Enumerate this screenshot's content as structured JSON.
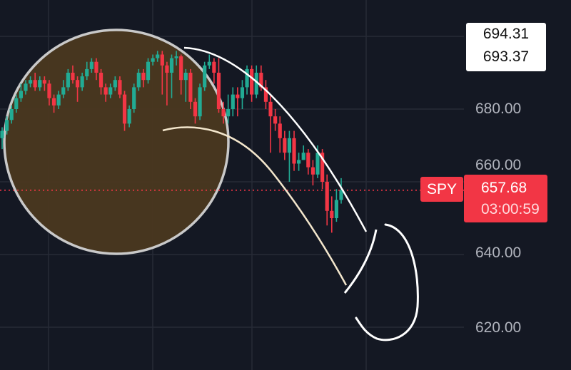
{
  "chart_data": {
    "type": "candlestick",
    "symbol": "SPY",
    "ylim": [
      615,
      705
    ],
    "y_ticks": [
      "680.00",
      "660.00",
      "640.00",
      "620.00"
    ],
    "grid": true,
    "colors": {
      "up": "#22ab94",
      "down": "#f23645",
      "background": "#141823",
      "highlight_circle_fill": "#4a3820",
      "annotation": "#ffffff"
    },
    "candles": [
      [
        672,
        675,
        669,
        674
      ],
      [
        674,
        678,
        673,
        677
      ],
      [
        677,
        681,
        676,
        680
      ],
      [
        680,
        684,
        679,
        683
      ],
      [
        683,
        687,
        682,
        685
      ],
      [
        685,
        688,
        684,
        687
      ],
      [
        687,
        689,
        686,
        688
      ],
      [
        688,
        690,
        685,
        686
      ],
      [
        686,
        689,
        685,
        688
      ],
      [
        688,
        689,
        685,
        687
      ],
      [
        687,
        688,
        681,
        683
      ],
      [
        683,
        684,
        679,
        681
      ],
      [
        681,
        685,
        680,
        684
      ],
      [
        684,
        688,
        683,
        686
      ],
      [
        686,
        691,
        685,
        690
      ],
      [
        690,
        692,
        687,
        688
      ],
      [
        688,
        689,
        682,
        686
      ],
      [
        686,
        690,
        685,
        689
      ],
      [
        689,
        693,
        688,
        691
      ],
      [
        691,
        694,
        690,
        693
      ],
      [
        693,
        694,
        688,
        690
      ],
      [
        690,
        691,
        684,
        686
      ],
      [
        686,
        687,
        682,
        684
      ],
      [
        684,
        687,
        683,
        686
      ],
      [
        686,
        689,
        685,
        688
      ],
      [
        688,
        689,
        683,
        684
      ],
      [
        684,
        685,
        674,
        676
      ],
      [
        676,
        681,
        675,
        680
      ],
      [
        680,
        687,
        679,
        686
      ],
      [
        686,
        691,
        685,
        690
      ],
      [
        690,
        691,
        686,
        688
      ],
      [
        688,
        694,
        687,
        693
      ],
      [
        693,
        695,
        692,
        694
      ],
      [
        694,
        696,
        693,
        695
      ],
      [
        695,
        696,
        684,
        692
      ],
      [
        692,
        693,
        681,
        690
      ],
      [
        690,
        695,
        683,
        694
      ],
      [
        694,
        696,
        692,
        694.5
      ],
      [
        694.5,
        695,
        684,
        688
      ],
      [
        688,
        691,
        682,
        690
      ],
      [
        690,
        691,
        680,
        682
      ],
      [
        682,
        683,
        676,
        678
      ],
      [
        678,
        687,
        677,
        686
      ],
      [
        686,
        693,
        685,
        692
      ],
      [
        692,
        695,
        691,
        693
      ],
      [
        693,
        694,
        687,
        690
      ],
      [
        690,
        694,
        679,
        680
      ],
      [
        680,
        682,
        676,
        678
      ],
      [
        678,
        684,
        676,
        680
      ],
      [
        680,
        686,
        678,
        684
      ],
      [
        684,
        686,
        678,
        683
      ],
      [
        683,
        688,
        680,
        686
      ],
      [
        686,
        692,
        684,
        691
      ],
      [
        691,
        692,
        682,
        684
      ],
      [
        684,
        692,
        683,
        690
      ],
      [
        690,
        692,
        685,
        686
      ],
      [
        686,
        688,
        680,
        682
      ],
      [
        682,
        684,
        668,
        678
      ],
      [
        678,
        680,
        674,
        676
      ],
      [
        676,
        678,
        668,
        672
      ],
      [
        672,
        674,
        666,
        668
      ],
      [
        668,
        674,
        660,
        672
      ],
      [
        672,
        674,
        663,
        665
      ],
      [
        665,
        668,
        663,
        666
      ],
      [
        666,
        670,
        666,
        668
      ],
      [
        668,
        669,
        662,
        664
      ],
      [
        664,
        666,
        659,
        662
      ],
      [
        662,
        670,
        661,
        668
      ],
      [
        668,
        669,
        658,
        660
      ],
      [
        660,
        662,
        648,
        652
      ],
      [
        652,
        656,
        646,
        650
      ],
      [
        650,
        658,
        649,
        655
      ],
      [
        655,
        661,
        654,
        657.68
      ]
    ],
    "crosshair_labels": {
      "high": "694.31",
      "low": "693.37"
    },
    "last_price": {
      "symbol_label": "SPY",
      "price": "657.68",
      "countdown": "03:00:59"
    }
  }
}
